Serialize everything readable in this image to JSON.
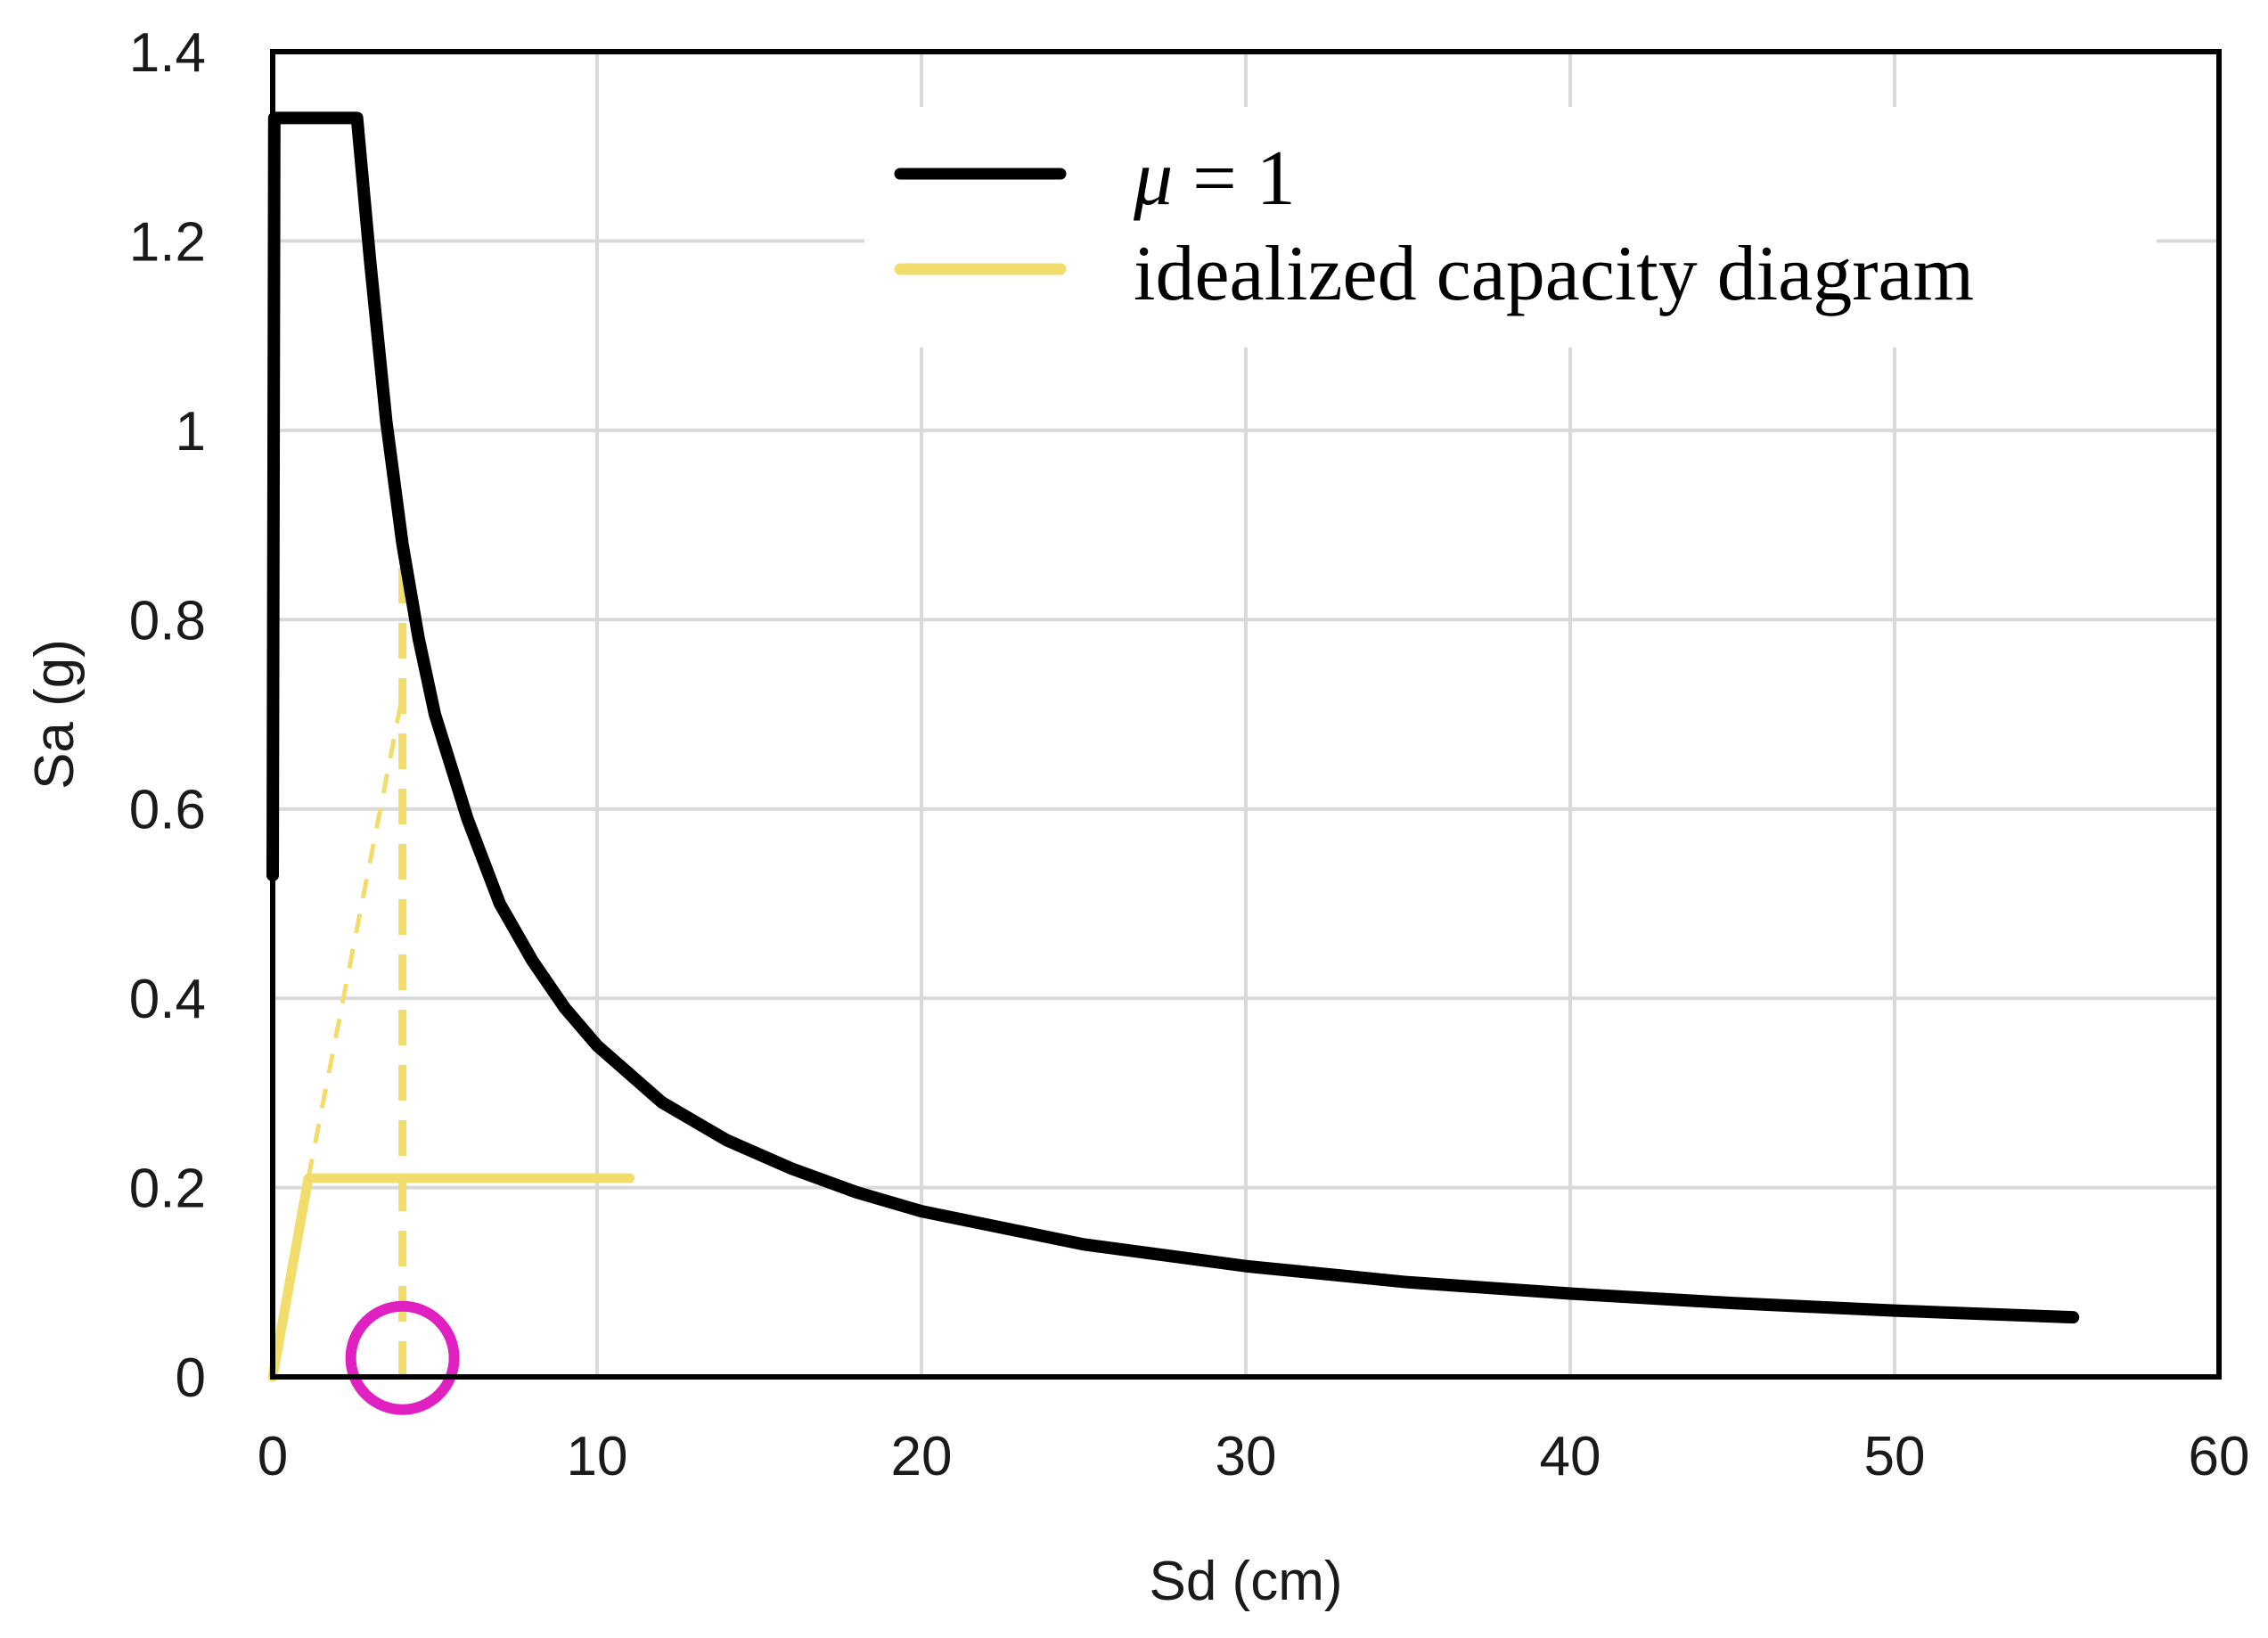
{
  "chart_data": {
    "type": "line",
    "xlabel": "Sd (cm)",
    "ylabel": "Sa (g)",
    "xlim": [
      0,
      60
    ],
    "ylim": [
      0,
      1.4
    ],
    "x_ticks": [
      0,
      10,
      20,
      30,
      40,
      50,
      60
    ],
    "x_tick_labels": [
      "0",
      "10",
      "20",
      "30",
      "40",
      "50",
      "60"
    ],
    "y_ticks": [
      0,
      0.2,
      0.4,
      0.6,
      0.8,
      1.0,
      1.2,
      1.4
    ],
    "y_tick_labels": [
      "0",
      "0.2",
      "0.4",
      "0.6",
      "0.8",
      "1",
      "1.2",
      "1.4"
    ],
    "grid": true,
    "legend_position": "top-right",
    "legend": [
      {
        "symbol": "μ",
        "text": " = 1",
        "color": "#000000"
      },
      {
        "text": "idealized capacity diagram",
        "color": "#F2DC6B"
      }
    ],
    "series": [
      {
        "name": "μ = 1",
        "color": "#000000",
        "points": [
          [
            0,
            0.53
          ],
          [
            0.05,
            1.33
          ],
          [
            2.6,
            1.33
          ],
          [
            3,
            1.18
          ],
          [
            3.5,
            1.01
          ],
          [
            4,
            0.88
          ],
          [
            4.5,
            0.78
          ],
          [
            5,
            0.7
          ],
          [
            6,
            0.59
          ],
          [
            7,
            0.5
          ],
          [
            8,
            0.44
          ],
          [
            9,
            0.39
          ],
          [
            10,
            0.35
          ],
          [
            12,
            0.29
          ],
          [
            14,
            0.25
          ],
          [
            16,
            0.22
          ],
          [
            18,
            0.195
          ],
          [
            20,
            0.175
          ],
          [
            25,
            0.14
          ],
          [
            30,
            0.117
          ],
          [
            35,
            0.1
          ],
          [
            40,
            0.088
          ],
          [
            45,
            0.078
          ],
          [
            50,
            0.07
          ],
          [
            55.5,
            0.063
          ]
        ]
      },
      {
        "name": "idealized capacity diagram",
        "color": "#F2DC6B",
        "points": [
          [
            0,
            0
          ],
          [
            1.1,
            0.21
          ],
          [
            11,
            0.21
          ]
        ]
      }
    ],
    "guide_lines": [
      {
        "name": "elastic-extension",
        "color": "#F2DC6B",
        "dash": "short",
        "points": [
          [
            1.1,
            0.21
          ],
          [
            4,
            0.72
          ]
        ]
      },
      {
        "name": "performance-displacement",
        "color": "#F2DC6B",
        "dash": "long",
        "points": [
          [
            4,
            0
          ],
          [
            4,
            0.89
          ]
        ]
      }
    ],
    "annotations": [
      {
        "type": "circle",
        "color": "#E020C0",
        "x": 4,
        "y": 0.02
      }
    ]
  }
}
